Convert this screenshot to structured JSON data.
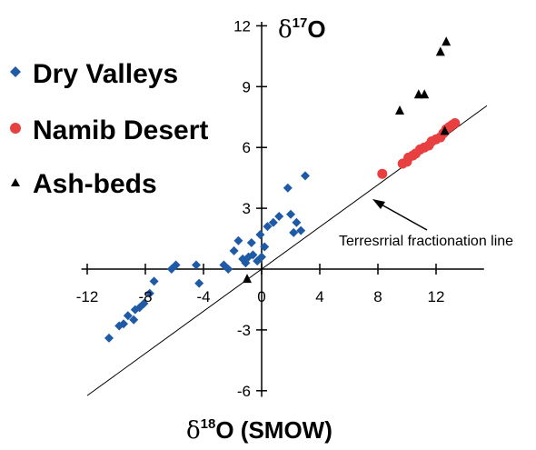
{
  "chart_data": {
    "type": "scatter",
    "xlabel": {
      "delta": "δ",
      "sup": "18",
      "main": "O (SMOW)"
    },
    "ylabel": {
      "delta": "δ",
      "sup": "17",
      "main": "O"
    },
    "xlim": [
      -13,
      15.5
    ],
    "ylim": [
      -6.5,
      12.2
    ],
    "xticks": [
      -12,
      -8,
      -4,
      0,
      4,
      8,
      12
    ],
    "xtick_labels": [
      "-12",
      "-8",
      "-4",
      "0",
      "4",
      "8",
      "12"
    ],
    "yticks": [
      -6,
      -3,
      3,
      6,
      9,
      12
    ],
    "ytick_labels": [
      "-6",
      "-3",
      "3",
      "6",
      "9",
      "12"
    ],
    "grid": false,
    "legend_position": "left",
    "series": [
      {
        "name": "Dry Valleys",
        "color": "#1f5aa6",
        "marker": "diamond",
        "points": [
          [
            -10.5,
            -3.4
          ],
          [
            -9.8,
            -2.8
          ],
          [
            -9.5,
            -2.7
          ],
          [
            -9.2,
            -2.3
          ],
          [
            -8.8,
            -2.5
          ],
          [
            -8.7,
            -2.0
          ],
          [
            -8.4,
            -1.9
          ],
          [
            -8.1,
            -1.7
          ],
          [
            -7.7,
            -1.2
          ],
          [
            -7.4,
            -0.6
          ],
          [
            -6.2,
            0.0
          ],
          [
            -5.9,
            0.2
          ],
          [
            -4.5,
            0.2
          ],
          [
            -4.3,
            -0.7
          ],
          [
            -2.6,
            0.2
          ],
          [
            -2.3,
            0.0
          ],
          [
            -1.9,
            0.9
          ],
          [
            -1.6,
            1.4
          ],
          [
            -1.3,
            0.5
          ],
          [
            -1.1,
            0.3
          ],
          [
            -0.9,
            0.6
          ],
          [
            -0.7,
            1.3
          ],
          [
            -0.6,
            0.7
          ],
          [
            -0.3,
            0.4
          ],
          [
            -0.1,
            1.7
          ],
          [
            0.0,
            0.6
          ],
          [
            0.2,
            1.1
          ],
          [
            0.4,
            2.1
          ],
          [
            0.8,
            2.3
          ],
          [
            1.2,
            2.6
          ],
          [
            1.8,
            4.0
          ],
          [
            2.0,
            2.7
          ],
          [
            2.2,
            1.8
          ],
          [
            2.4,
            2.3
          ],
          [
            2.7,
            1.9
          ],
          [
            3.0,
            4.6
          ]
        ]
      },
      {
        "name": "Namib Desert",
        "color": "#e84040",
        "marker": "circle",
        "points": [
          [
            8.3,
            4.7
          ],
          [
            9.7,
            5.2
          ],
          [
            10.0,
            5.3
          ],
          [
            10.1,
            5.5
          ],
          [
            10.4,
            5.6
          ],
          [
            10.6,
            5.7
          ],
          [
            10.9,
            5.9
          ],
          [
            11.2,
            6.0
          ],
          [
            11.5,
            6.1
          ],
          [
            11.7,
            6.3
          ],
          [
            12.0,
            6.4
          ],
          [
            12.3,
            6.5
          ],
          [
            12.5,
            6.7
          ],
          [
            12.7,
            6.9
          ],
          [
            12.9,
            7.0
          ],
          [
            13.1,
            7.1
          ],
          [
            13.3,
            7.2
          ]
        ]
      },
      {
        "name": "Ash-beds",
        "color": "#000000",
        "marker": "triangle",
        "points": [
          [
            -1.0,
            -0.5
          ],
          [
            9.5,
            7.8
          ],
          [
            10.8,
            8.6
          ],
          [
            11.2,
            8.6
          ],
          [
            12.3,
            10.7
          ],
          [
            12.7,
            11.2
          ],
          [
            12.6,
            6.8
          ]
        ]
      }
    ],
    "reference_line": {
      "label": "Terresrrial fractionation line",
      "slope": 0.52,
      "intercept": 0,
      "x_range": [
        -12,
        15.5
      ]
    },
    "annotation": {
      "text": "Terresrrial fractionation line",
      "arrow_target": [
        7.8,
        4.1
      ]
    }
  }
}
